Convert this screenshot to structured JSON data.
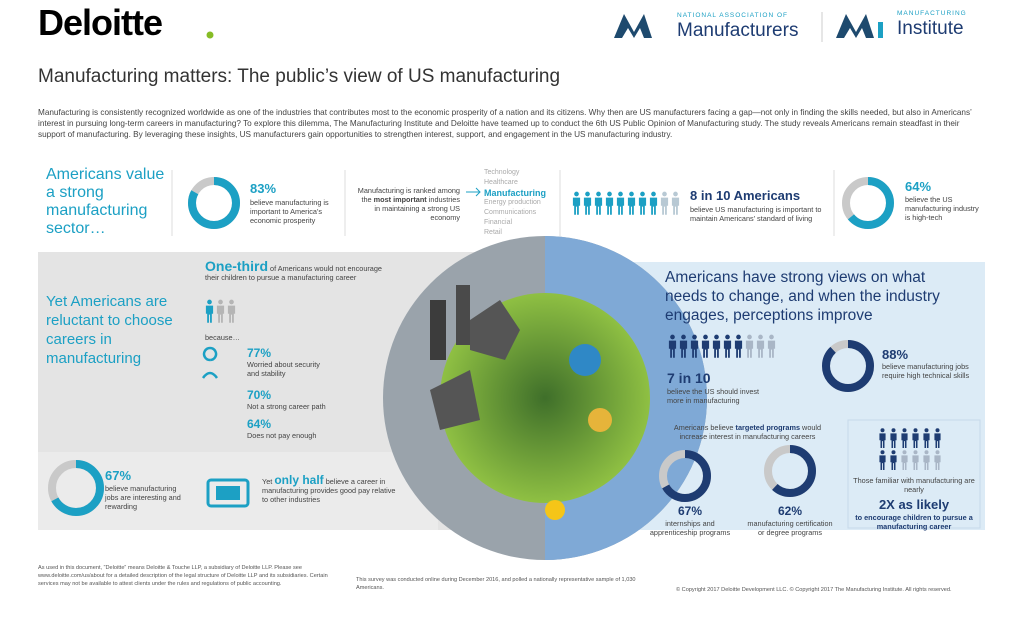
{
  "header": {
    "logo": "Deloitte",
    "nam_small": "NATIONAL ASSOCIATION OF",
    "nam_big": "Manufacturers",
    "mi_small": "MANUFACTURING",
    "mi_big": "Institute"
  },
  "title": "Manufacturing matters: The public’s view of US manufacturing",
  "intro": "Manufacturing is consistently recognized worldwide as one of the industries that contributes most to the economic prosperity of a nation and its citizens. Why then are US manufacturers facing a gap—not only in finding the skills needed, but also in Americans’ interest in pursuing long-term careers in manufacturing? To explore this dilemma, The Manufacturing Institute and Deloitte have teamed up to conduct the 6th US Public Opinion of Manufacturing study. The study reveals Americans remain steadfast in their support of manufacturing. By leveraging these insights, US manufacturers gain opportunities to strengthen interest, support, and engagement in the US manufacturing industry.",
  "value_section": {
    "heading": "Americans value a strong manufacturing sector…",
    "prosperity": {
      "stat": {
        "value": 83,
        "label": "83%"
      },
      "text": "believe manufacturing is important to America’s economic prosperity"
    },
    "ranking": {
      "pre": "Manufacturing is ranked among the",
      "bold": "most important",
      "post": "industries in maintaining a strong US economy",
      "list": [
        "Technology",
        "Healthcare",
        "Manufacturing",
        "Energy production",
        "Communications",
        "Financial",
        "Retail"
      ]
    },
    "standard": {
      "stat": "8 in 10 Americans",
      "text": "believe US manufacturing is important to maintain Americans’ standard of living"
    },
    "hightech": {
      "stat": {
        "value": 64,
        "label": "64%"
      },
      "text": "believe the US manufacturing industry is high-tech"
    }
  },
  "reluctant_section": {
    "heading": "Yet Americans are reluctant to choose careers in manufacturing",
    "one_third": {
      "bold": "One-third",
      "text": "of Americans would not encourage their children to pursue a manufacturing career"
    },
    "because": "because…",
    "reasons": [
      {
        "stat": "77%",
        "text": "Worried about security and stability"
      },
      {
        "stat": "70%",
        "text": "Not a strong career path"
      },
      {
        "stat": "64%",
        "text": "Does not pay enough"
      }
    ],
    "rewarding": {
      "stat": {
        "value": 67,
        "label": "67%"
      },
      "text": "believe manufacturing jobs are interesting and rewarding"
    },
    "pay": {
      "pre": "Yet",
      "bold": "only half",
      "post": "believe a career in manufacturing provides good pay relative to other industries"
    }
  },
  "change_section": {
    "heading": "Americans have strong views on what needs to change, and when the industry engages, perceptions improve",
    "invest": {
      "stat": "7 in 10",
      "text": "believe the US should invest more in manufacturing"
    },
    "skills": {
      "stat": {
        "value": 88,
        "label": "88%"
      },
      "text": "believe manufacturing jobs require high technical skills"
    },
    "programs": {
      "pre": "Americans believe",
      "bold": "targeted programs",
      "post": "would increase interest in manufacturing careers",
      "items": [
        {
          "stat": {
            "value": 67,
            "label": "67%"
          },
          "text": "internships and apprenticeship programs"
        },
        {
          "stat": {
            "value": 62,
            "label": "62%"
          },
          "text": "manufacturing certification or degree programs"
        }
      ]
    },
    "familiar": {
      "pre": "Those familiar with manufacturing are nearly",
      "stat": "2X as likely",
      "post": "to encourage children to pursue a manufacturing career"
    }
  },
  "footer": {
    "legal": "As used in this document, “Deloitte” means Deloitte & Touche LLP, a subsidiary of Deloitte LLP. Please see www.deloitte.com/us/about for a detailed description of the legal structure of Deloitte LLP and its subsidiaries. Certain services may not be available to attest clients under the rules and regulations of public accounting.",
    "survey": "This survey was conducted online during December 2016, and polled a nationally representative sample of 1,030 Americans.",
    "copyright": "© Copyright 2017 Deloitte Development LLC. © Copyright 2017 The Manufacturing Institute. All rights reserved."
  }
}
